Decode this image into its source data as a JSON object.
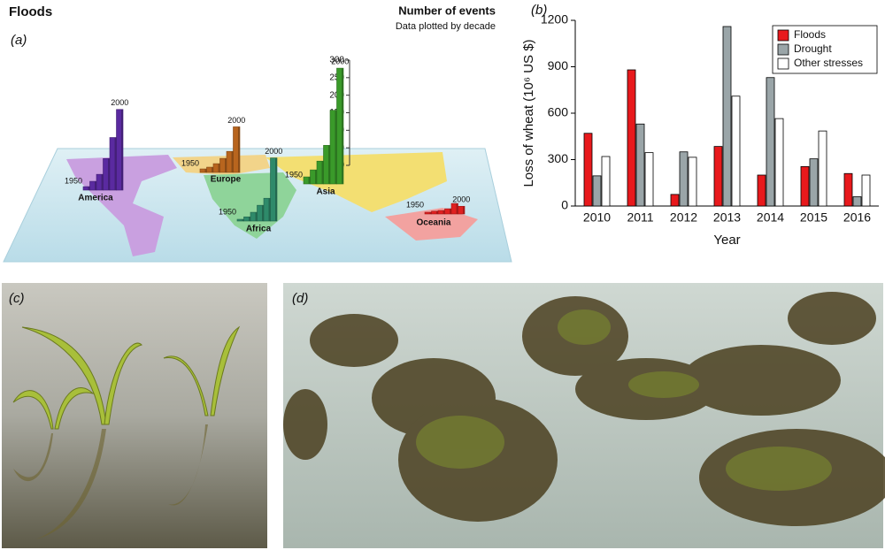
{
  "chart_data": [
    {
      "type": "mapbar",
      "title": "Floods",
      "panel_label": "(a)",
      "axis_title": "Number of events",
      "subtitle": "Data plotted by decade",
      "categories": [
        "1950",
        null,
        null,
        null,
        null,
        "2000"
      ],
      "series": [
        {
          "name": "America",
          "color": "#5a2aa0",
          "values": [
            10,
            25,
            45,
            90,
            150,
            230
          ]
        },
        {
          "name": "Europe",
          "color": "#b8651e",
          "values": [
            10,
            15,
            25,
            40,
            60,
            130
          ]
        },
        {
          "name": "Africa",
          "color": "#2e8a6a",
          "values": [
            5,
            12,
            25,
            45,
            65,
            180
          ]
        },
        {
          "name": "Asia",
          "color": "#3a9a2a",
          "values": [
            20,
            40,
            65,
            110,
            210,
            330
          ]
        },
        {
          "name": "Oceania",
          "color": "#e02020",
          "values": [
            5,
            8,
            10,
            15,
            30,
            22
          ]
        }
      ],
      "ylim": [
        0,
        300
      ],
      "yticks": [
        0,
        50,
        100,
        150,
        200,
        250,
        300
      ]
    },
    {
      "type": "bar",
      "panel_label": "(b)",
      "ylabel": "Loss of wheat (10⁶ US $)",
      "xlabel": "Year",
      "categories": [
        "2010",
        "2011",
        "2012",
        "2013",
        "2014",
        "2015",
        "2016"
      ],
      "series": [
        {
          "name": "Floods",
          "color": "#e8191c",
          "values": [
            470,
            880,
            75,
            385,
            200,
            255,
            210
          ]
        },
        {
          "name": "Drought",
          "color": "#9aa5a8",
          "values": [
            195,
            530,
            350,
            1160,
            830,
            305,
            60
          ]
        },
        {
          "name": "Other stresses",
          "color": "#ffffff",
          "values": [
            320,
            345,
            315,
            710,
            565,
            485,
            200
          ]
        }
      ],
      "ylim": [
        0,
        1200
      ],
      "yticks": [
        0,
        300,
        600,
        900,
        1200
      ],
      "legend": "upper right"
    }
  ],
  "photo_labels": [
    "(c)",
    "(d)"
  ]
}
